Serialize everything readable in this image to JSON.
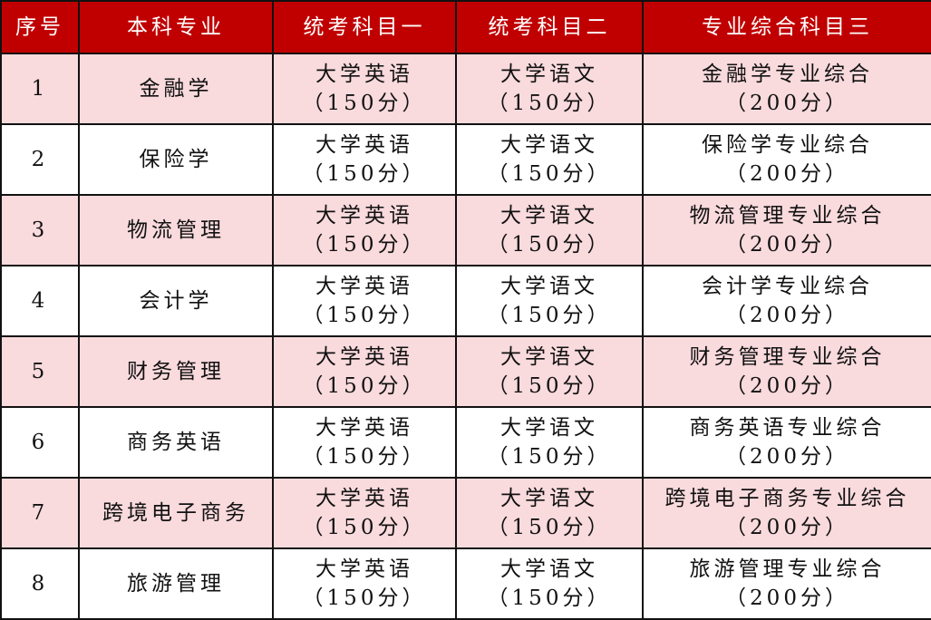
{
  "colors": {
    "header_bg": "#C00000",
    "odd_row_bg": "#F9DADD"
  },
  "headers": [
    "序号",
    "本科专业",
    "统考科目一",
    "统考科目二",
    "专业综合科目三"
  ],
  "rows": [
    {
      "no": "1",
      "major": "金融学",
      "subj1": "大学英语",
      "subj1_score": "（150分）",
      "subj2": "大学语文",
      "subj2_score": "（150分）",
      "subj3": "金融学专业综合",
      "subj3_score": "（200分）"
    },
    {
      "no": "2",
      "major": "保险学",
      "subj1": "大学英语",
      "subj1_score": "（150分）",
      "subj2": "大学语文",
      "subj2_score": "（150分）",
      "subj3": "保险学专业综合",
      "subj3_score": "（200分）"
    },
    {
      "no": "3",
      "major": "物流管理",
      "subj1": "大学英语",
      "subj1_score": "（150分）",
      "subj2": "大学语文",
      "subj2_score": "（150分）",
      "subj3": "物流管理专业综合",
      "subj3_score": "（200分）"
    },
    {
      "no": "4",
      "major": "会计学",
      "subj1": "大学英语",
      "subj1_score": "（150分）",
      "subj2": "大学语文",
      "subj2_score": "（150分）",
      "subj3": "会计学专业综合",
      "subj3_score": "（200分）"
    },
    {
      "no": "5",
      "major": "财务管理",
      "subj1": "大学英语",
      "subj1_score": "（150分）",
      "subj2": "大学语文",
      "subj2_score": "（150分）",
      "subj3": "财务管理专业综合",
      "subj3_score": "（200分）"
    },
    {
      "no": "6",
      "major": "商务英语",
      "subj1": "大学英语",
      "subj1_score": "（150分）",
      "subj2": "大学语文",
      "subj2_score": "（150分）",
      "subj3": "商务英语专业综合",
      "subj3_score": "（200分）"
    },
    {
      "no": "7",
      "major": "跨境电子商务",
      "subj1": "大学英语",
      "subj1_score": "（150分）",
      "subj2": "大学语文",
      "subj2_score": "（150分）",
      "subj3": "跨境电子商务专业综合",
      "subj3_score": "（200分）"
    },
    {
      "no": "8",
      "major": "旅游管理",
      "subj1": "大学英语",
      "subj1_score": "（150分）",
      "subj2": "大学语文",
      "subj2_score": "（150分）",
      "subj3": "旅游管理专业综合",
      "subj3_score": "（200分）"
    }
  ]
}
